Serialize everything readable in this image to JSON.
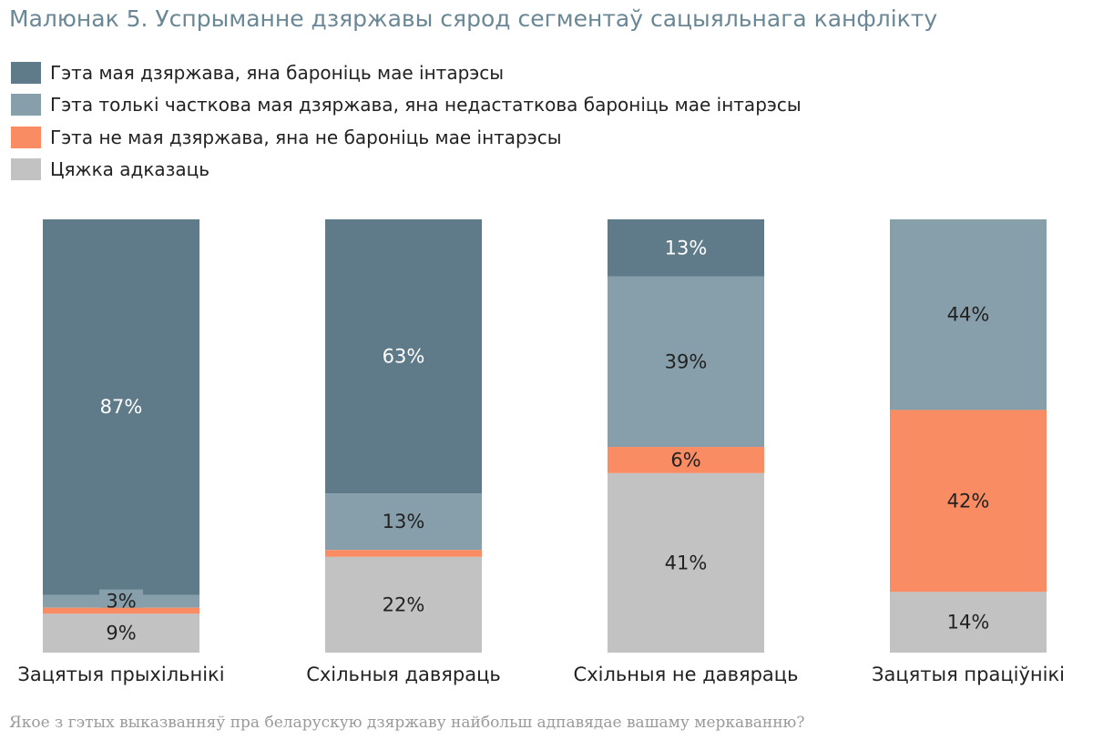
{
  "title": "Малюнак 5. Успрыманне дзяржавы сярод сегментаў сацыяльнага канфлікту",
  "footnote": "Якое з гэтых выказванняў пра беларускую дзяржаву найбольш адпавядае вашаму меркаванню?",
  "chart_data": {
    "type": "bar",
    "stacked": true,
    "normalized": true,
    "legend_position": "top-left",
    "grid": false,
    "categories": [
      "Зацятыя прыхільнікі",
      "Схільныя давяраць",
      "Схільныя не давяраць",
      "Зацятыя праціўнікі"
    ],
    "series": [
      {
        "name": "Гэта мая дзяржава, яна бароніць мае інтарэсы",
        "color": "#5f7a89",
        "label_color": "#ffffff",
        "values": [
          87,
          63,
          13,
          0
        ]
      },
      {
        "name": "Гэта толькі часткова мая дзяржава, яна недастаткова бароніць мае інтарэсы",
        "color": "#879fab",
        "label_color": "#222222",
        "values": [
          3,
          13,
          39,
          44
        ]
      },
      {
        "name": "Гэта не мая дзяржава, яна не бароніць мае інтарэсы",
        "color": "#fa8c63",
        "label_color": "#222222",
        "values": [
          1.4,
          1.6,
          6,
          42
        ]
      },
      {
        "name": "Цяжка адказаць",
        "color": "#c2c2c2",
        "label_color": "#222222",
        "values": [
          9,
          22,
          41,
          14
        ]
      }
    ],
    "data_labels": [
      [
        "87%",
        "3%",
        "",
        "9%"
      ],
      [
        "63%",
        "13%",
        "",
        "22%"
      ],
      [
        "13%",
        "39%",
        "6%",
        "41%"
      ],
      [
        "",
        "44%",
        "42%",
        "14%"
      ]
    ]
  }
}
